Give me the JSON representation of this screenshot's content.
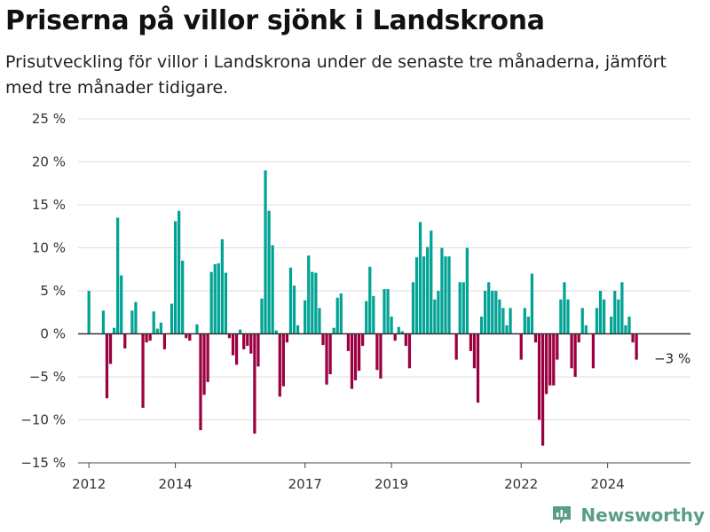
{
  "header": {
    "title": "Priserna på villor sjönk i Landskrona",
    "subtitle": "Prisutveckling för villor i Landskrona under de senaste tre månaderna, jämfört med tre månader tidigare."
  },
  "brand": {
    "name": "Newsworthy",
    "icon": "bar-chart-logo-icon"
  },
  "colors": {
    "positive": "#00a394",
    "negative": "#9b0040",
    "grid": "#dddddd",
    "axis": "#444444",
    "brand": "#5a9e88"
  },
  "chart_data": {
    "type": "bar",
    "title": "Priserna på villor sjönk i Landskrona",
    "ylim": [
      -15,
      25
    ],
    "yticks": [
      25,
      20,
      15,
      10,
      5,
      0,
      -5,
      -10,
      -15
    ],
    "ytick_labels": [
      "25 %",
      "20 %",
      "15 %",
      "10 %",
      "5 %",
      "0 %",
      "−5 %",
      "−10 %",
      "−15 %"
    ],
    "xlim": [
      "2011-10",
      "2025-12"
    ],
    "xticks": [
      {
        "label": "2012",
        "at": "2012-01"
      },
      {
        "label": "2014",
        "at": "2014-01"
      },
      {
        "label": "2017",
        "at": "2017-01"
      },
      {
        "label": "2019",
        "at": "2019-01"
      },
      {
        "label": "2022",
        "at": "2022-01"
      },
      {
        "label": "2024",
        "at": "2024-01"
      }
    ],
    "grid": true,
    "end_label": "−3 %",
    "series": [
      {
        "points": [
          [
            "2012-01",
            5.0
          ],
          [
            "2012-03",
            0.0
          ],
          [
            "2012-04",
            0.0
          ],
          [
            "2012-05",
            2.7
          ],
          [
            "2012-06",
            -7.5
          ],
          [
            "2012-07",
            -3.5
          ],
          [
            "2012-08",
            0.7
          ],
          [
            "2012-09",
            13.5
          ],
          [
            "2012-10",
            6.8
          ],
          [
            "2012-11",
            -1.7
          ],
          [
            "2013-01",
            2.7
          ],
          [
            "2013-02",
            3.7
          ],
          [
            "2013-04",
            -8.6
          ],
          [
            "2013-05",
            -1.0
          ],
          [
            "2013-06",
            -0.8
          ],
          [
            "2013-07",
            2.6
          ],
          [
            "2013-08",
            0.6
          ],
          [
            "2013-09",
            1.3
          ],
          [
            "2013-10",
            -1.8
          ],
          [
            "2013-12",
            3.5
          ],
          [
            "2014-01",
            13.1
          ],
          [
            "2014-02",
            14.3
          ],
          [
            "2014-03",
            8.5
          ],
          [
            "2014-04",
            -0.5
          ],
          [
            "2014-05",
            -0.8
          ],
          [
            "2014-06",
            0.0
          ],
          [
            "2014-07",
            1.1
          ],
          [
            "2014-08",
            -11.2
          ],
          [
            "2014-09",
            -7.1
          ],
          [
            "2014-10",
            -5.6
          ],
          [
            "2014-11",
            7.2
          ],
          [
            "2014-12",
            8.1
          ],
          [
            "2015-01",
            8.2
          ],
          [
            "2015-02",
            11.0
          ],
          [
            "2015-03",
            7.1
          ],
          [
            "2015-04",
            -0.5
          ],
          [
            "2015-05",
            -2.5
          ],
          [
            "2015-06",
            -3.6
          ],
          [
            "2015-07",
            0.5
          ],
          [
            "2015-08",
            -1.8
          ],
          [
            "2015-09",
            -1.4
          ],
          [
            "2015-10",
            -2.3
          ],
          [
            "2015-11",
            -11.6
          ],
          [
            "2015-12",
            -3.8
          ],
          [
            "2016-01",
            4.1
          ],
          [
            "2016-02",
            19.0
          ],
          [
            "2016-03",
            14.3
          ],
          [
            "2016-04",
            10.3
          ],
          [
            "2016-05",
            0.4
          ],
          [
            "2016-06",
            -7.3
          ],
          [
            "2016-07",
            -6.1
          ],
          [
            "2016-08",
            -1.0
          ],
          [
            "2016-09",
            7.7
          ],
          [
            "2016-10",
            5.6
          ],
          [
            "2016-11",
            1.0
          ],
          [
            "2017-01",
            3.9
          ],
          [
            "2017-02",
            9.1
          ],
          [
            "2017-03",
            7.2
          ],
          [
            "2017-04",
            7.1
          ],
          [
            "2017-05",
            3.0
          ],
          [
            "2017-06",
            -1.3
          ],
          [
            "2017-07",
            -5.9
          ],
          [
            "2017-08",
            -4.7
          ],
          [
            "2017-09",
            0.7
          ],
          [
            "2017-10",
            4.2
          ],
          [
            "2017-11",
            4.7
          ],
          [
            "2017-12",
            0.0
          ],
          [
            "2018-01",
            -2.0
          ],
          [
            "2018-02",
            -6.4
          ],
          [
            "2018-03",
            -5.4
          ],
          [
            "2018-04",
            -4.3
          ],
          [
            "2018-05",
            -1.4
          ],
          [
            "2018-06",
            3.8
          ],
          [
            "2018-07",
            7.8
          ],
          [
            "2018-08",
            4.4
          ],
          [
            "2018-09",
            -4.2
          ],
          [
            "2018-10",
            -5.2
          ],
          [
            "2018-11",
            5.2
          ],
          [
            "2018-12",
            5.2
          ],
          [
            "2019-01",
            2.0
          ],
          [
            "2019-02",
            -0.8
          ],
          [
            "2019-03",
            0.8
          ],
          [
            "2019-04",
            0.3
          ],
          [
            "2019-05",
            -1.4
          ],
          [
            "2019-06",
            -4.0
          ],
          [
            "2019-07",
            6.0
          ],
          [
            "2019-08",
            8.9
          ],
          [
            "2019-09",
            13.0
          ],
          [
            "2019-10",
            9.0
          ],
          [
            "2019-11",
            10.1
          ],
          [
            "2019-12",
            12.0
          ],
          [
            "2020-01",
            4.0
          ],
          [
            "2020-02",
            5.0
          ],
          [
            "2020-03",
            10.0
          ],
          [
            "2020-04",
            9.0
          ],
          [
            "2020-05",
            9.0
          ],
          [
            "2020-06",
            0.0
          ],
          [
            "2020-07",
            -3.0
          ],
          [
            "2020-08",
            6.0
          ],
          [
            "2020-09",
            6.0
          ],
          [
            "2020-10",
            10.0
          ],
          [
            "2020-11",
            -2.0
          ],
          [
            "2020-12",
            -4.0
          ],
          [
            "2021-01",
            -8.0
          ],
          [
            "2021-02",
            2.0
          ],
          [
            "2021-03",
            5.0
          ],
          [
            "2021-04",
            6.0
          ],
          [
            "2021-05",
            5.0
          ],
          [
            "2021-06",
            5.0
          ],
          [
            "2021-07",
            4.0
          ],
          [
            "2021-08",
            3.0
          ],
          [
            "2021-09",
            1.0
          ],
          [
            "2021-10",
            3.0
          ],
          [
            "2021-11",
            0.0
          ],
          [
            "2021-12",
            0.0
          ],
          [
            "2022-01",
            -3.0
          ],
          [
            "2022-02",
            3.0
          ],
          [
            "2022-03",
            2.0
          ],
          [
            "2022-04",
            7.0
          ],
          [
            "2022-05",
            -1.0
          ],
          [
            "2022-06",
            -10.0
          ],
          [
            "2022-07",
            -13.0
          ],
          [
            "2022-08",
            -7.0
          ],
          [
            "2022-09",
            -6.0
          ],
          [
            "2022-10",
            -6.0
          ],
          [
            "2022-11",
            -3.0
          ],
          [
            "2022-12",
            4.0
          ],
          [
            "2023-01",
            6.0
          ],
          [
            "2023-02",
            4.0
          ],
          [
            "2023-03",
            -4.0
          ],
          [
            "2023-04",
            -5.0
          ],
          [
            "2023-05",
            -1.0
          ],
          [
            "2023-06",
            3.0
          ],
          [
            "2023-07",
            1.0
          ],
          [
            "2023-08",
            0.0
          ],
          [
            "2023-09",
            -4.0
          ],
          [
            "2023-10",
            3.0
          ],
          [
            "2023-11",
            5.0
          ],
          [
            "2023-12",
            4.0
          ],
          [
            "2024-01",
            0.0
          ],
          [
            "2024-02",
            2.0
          ],
          [
            "2024-03",
            5.0
          ],
          [
            "2024-04",
            4.0
          ],
          [
            "2024-05",
            6.0
          ],
          [
            "2024-06",
            1.0
          ],
          [
            "2024-07",
            2.0
          ],
          [
            "2024-08",
            -1.0
          ],
          [
            "2024-09",
            -3.0
          ]
        ]
      }
    ]
  }
}
